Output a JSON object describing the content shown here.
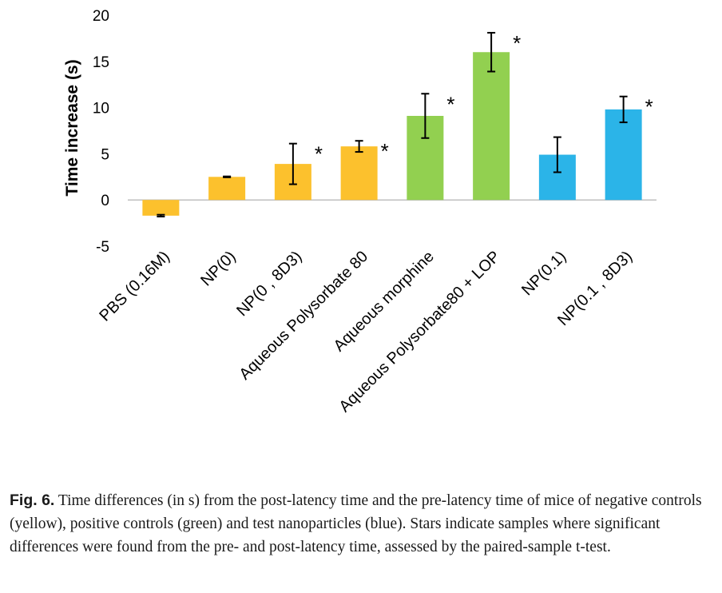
{
  "chart_data": {
    "type": "bar",
    "ylabel": "Time increase (s)",
    "xlabel": "",
    "ylim": [
      -5,
      20
    ],
    "yticks": [
      -5,
      0,
      5,
      10,
      15,
      20
    ],
    "grid": false,
    "legend": "none",
    "categories": [
      "PBS (0.16M)",
      "NP(0)",
      "NP(0 , 8D3)",
      "Aqueous Polysorbate 80",
      "Aqueous morphine",
      "Aqueous Polysorbate80 + LOP",
      "NP(0.1)",
      "NP(0.1 , 8D3)"
    ],
    "values": [
      -1.7,
      2.5,
      3.9,
      5.8,
      9.1,
      16.0,
      4.9,
      9.8
    ],
    "errors": [
      0.1,
      0.05,
      2.2,
      0.6,
      2.4,
      2.1,
      1.9,
      1.4
    ],
    "significant": [
      false,
      false,
      true,
      true,
      true,
      true,
      false,
      true
    ],
    "significance_marker": "*",
    "colors": [
      "#fcc12d",
      "#fcc12d",
      "#fcc12d",
      "#fcc12d",
      "#92d050",
      "#92d050",
      "#2bb4e8",
      "#2bb4e8"
    ]
  },
  "caption": {
    "label": "Fig. 6.",
    "text": " Time differences (in s) from the post-latency time and the pre-latency time of mice of negative controls (yellow), positive controls (green) and test nanoparticles (blue). Stars indicate samples where significant differences were found from the pre- and post-latency time, assessed by the paired-sample t-test."
  }
}
